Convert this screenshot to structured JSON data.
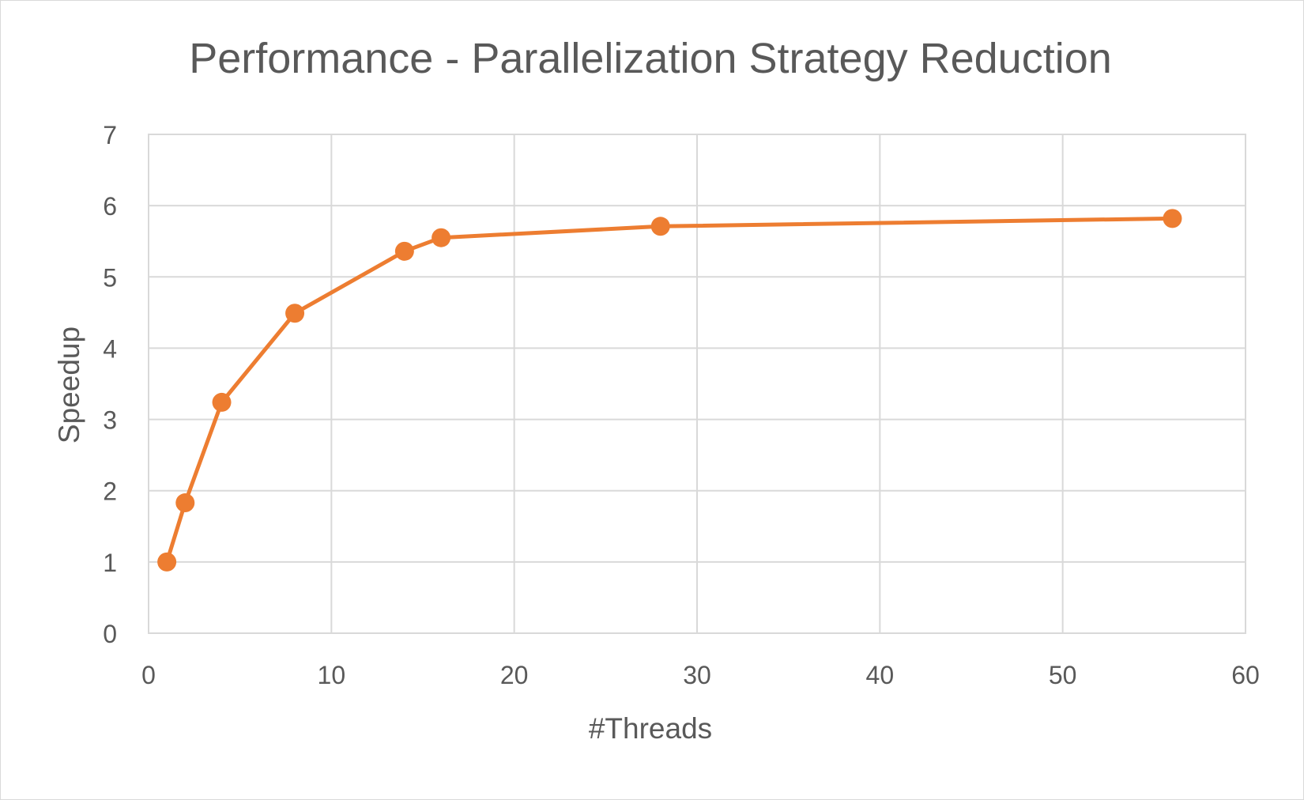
{
  "chart_data": {
    "type": "line",
    "title": "Performance - Parallelization Strategy Reduction",
    "xlabel": "#Threads",
    "ylabel": "Speedup",
    "xlim": [
      0,
      60
    ],
    "ylim": [
      0,
      7
    ],
    "x_ticks": [
      0,
      10,
      20,
      30,
      40,
      50,
      60
    ],
    "y_ticks": [
      0,
      1,
      2,
      3,
      4,
      5,
      6,
      7
    ],
    "grid": true,
    "legend": "none",
    "series": [
      {
        "name": "Speedup",
        "color": "#ED7D31",
        "x": [
          1,
          2,
          4,
          8,
          14,
          16,
          28,
          56
        ],
        "y": [
          1.0,
          1.83,
          3.24,
          4.49,
          5.36,
          5.55,
          5.71,
          5.82
        ]
      }
    ]
  }
}
